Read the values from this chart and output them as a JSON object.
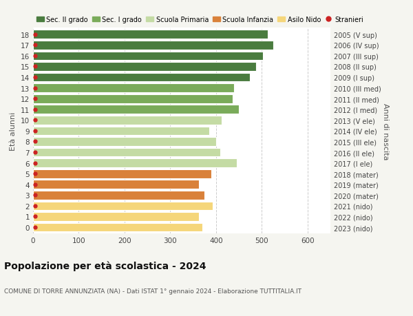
{
  "ages": [
    18,
    17,
    16,
    15,
    14,
    13,
    12,
    11,
    10,
    9,
    8,
    7,
    6,
    5,
    4,
    3,
    2,
    1,
    0
  ],
  "values": [
    513,
    525,
    503,
    488,
    474,
    440,
    437,
    450,
    413,
    385,
    400,
    410,
    445,
    390,
    362,
    375,
    392,
    362,
    370
  ],
  "anni_nascita": [
    "2005 (V sup)",
    "2006 (IV sup)",
    "2007 (III sup)",
    "2008 (II sup)",
    "2009 (I sup)",
    "2010 (III med)",
    "2011 (II med)",
    "2012 (I med)",
    "2013 (V ele)",
    "2014 (IV ele)",
    "2015 (III ele)",
    "2016 (II ele)",
    "2017 (I ele)",
    "2018 (mater)",
    "2019 (mater)",
    "2020 (mater)",
    "2021 (nido)",
    "2022 (nido)",
    "2023 (nido)"
  ],
  "bar_colors": [
    "#4a7c3f",
    "#4a7c3f",
    "#4a7c3f",
    "#4a7c3f",
    "#4a7c3f",
    "#7aab5a",
    "#7aab5a",
    "#7aab5a",
    "#c4dba4",
    "#c4dba4",
    "#c4dba4",
    "#c4dba4",
    "#c4dba4",
    "#d9813a",
    "#d9813a",
    "#d9813a",
    "#f5d67a",
    "#f5d67a",
    "#f5d67a"
  ],
  "legend_labels": [
    "Sec. II grado",
    "Sec. I grado",
    "Scuola Primaria",
    "Scuola Infanzia",
    "Asilo Nido",
    "Stranieri"
  ],
  "legend_colors": [
    "#4a7c3f",
    "#7aab5a",
    "#c4dba4",
    "#d9813a",
    "#f5d67a",
    "#cc2222"
  ],
  "title": "Popolazione per età scolastica - 2024",
  "subtitle": "COMUNE DI TORRE ANNUNZIATA (NA) - Dati ISTAT 1° gennaio 2024 - Elaborazione TUTTITALIA.IT",
  "ylabel_left": "Età alunni",
  "ylabel_right": "Anni di nascita",
  "xlim": [
    0,
    650
  ],
  "xticks": [
    0,
    100,
    200,
    300,
    400,
    500,
    600
  ],
  "background_color": "#f5f5f0",
  "plot_bg_color": "#ffffff"
}
